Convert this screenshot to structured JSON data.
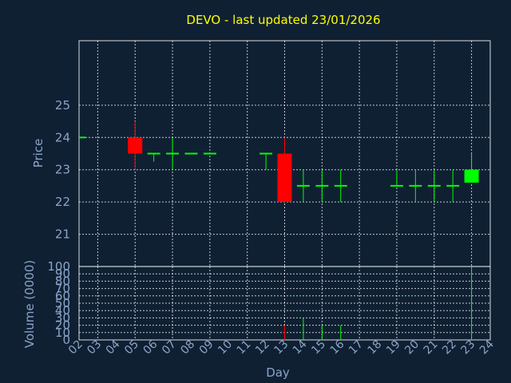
{
  "chart_data": {
    "type": "candlestick",
    "title": "DEVO - last updated 23/01/2026",
    "xlabel": "Day",
    "ylabel": "Price",
    "volume_label": "Volume (0000)",
    "grid": true,
    "colors": {
      "background": "#0f2033",
      "up": "#00ff00",
      "down": "#ff0000",
      "title": "#ffff00",
      "axis_text": "#8aa4c8"
    },
    "xlim": [
      2,
      24
    ],
    "ylim": [
      20,
      27
    ],
    "y_ticks": [
      21,
      22,
      23,
      24,
      25
    ],
    "volume_ylim": [
      0,
      100
    ],
    "volume_ticks": [
      0,
      10,
      20,
      30,
      40,
      50,
      60,
      70,
      80,
      90,
      100
    ],
    "x_ticks": [
      "02",
      "03",
      "04",
      "05",
      "06",
      "07",
      "08",
      "09",
      "10",
      "11",
      "12",
      "13",
      "14",
      "15",
      "16",
      "17",
      "18",
      "19",
      "20",
      "21",
      "22",
      "23",
      "24"
    ],
    "candles": [
      {
        "day": 2,
        "open": 24.0,
        "high": 24.0,
        "low": 24.0,
        "close": 24.0,
        "volume": 0
      },
      {
        "day": 5,
        "open": 24.0,
        "high": 24.5,
        "low": 23.0,
        "close": 23.5,
        "volume": 0
      },
      {
        "day": 6,
        "open": 23.5,
        "high": 23.5,
        "low": 23.25,
        "close": 23.5,
        "volume": 0
      },
      {
        "day": 7,
        "open": 23.5,
        "high": 24.0,
        "low": 23.0,
        "close": 23.5,
        "volume": 0
      },
      {
        "day": 8,
        "open": 23.5,
        "high": 23.5,
        "low": 23.5,
        "close": 23.5,
        "volume": 0
      },
      {
        "day": 9,
        "open": 23.5,
        "high": 23.5,
        "low": 23.5,
        "close": 23.5,
        "volume": 0
      },
      {
        "day": 12,
        "open": 23.5,
        "high": 23.5,
        "low": 23.0,
        "close": 23.5,
        "volume": 0
      },
      {
        "day": 13,
        "open": 23.5,
        "high": 24.0,
        "low": 22.0,
        "close": 22.0,
        "volume": 20
      },
      {
        "day": 14,
        "open": 22.5,
        "high": 23.0,
        "low": 22.0,
        "close": 22.5,
        "volume": 30
      },
      {
        "day": 15,
        "open": 22.5,
        "high": 23.0,
        "low": 22.0,
        "close": 22.5,
        "volume": 20
      },
      {
        "day": 16,
        "open": 22.5,
        "high": 23.0,
        "low": 22.0,
        "close": 22.5,
        "volume": 20
      },
      {
        "day": 19,
        "open": 22.5,
        "high": 23.0,
        "low": 22.5,
        "close": 22.5,
        "volume": 0
      },
      {
        "day": 20,
        "open": 22.5,
        "high": 23.0,
        "low": 22.0,
        "close": 22.5,
        "volume": 0
      },
      {
        "day": 21,
        "open": 22.5,
        "high": 23.0,
        "low": 22.0,
        "close": 22.5,
        "volume": 0
      },
      {
        "day": 22,
        "open": 22.5,
        "high": 23.0,
        "low": 22.0,
        "close": 22.5,
        "volume": 0
      },
      {
        "day": 23,
        "open": 22.6,
        "high": 23.5,
        "low": 22.6,
        "close": 23.0,
        "volume": 100
      }
    ]
  }
}
